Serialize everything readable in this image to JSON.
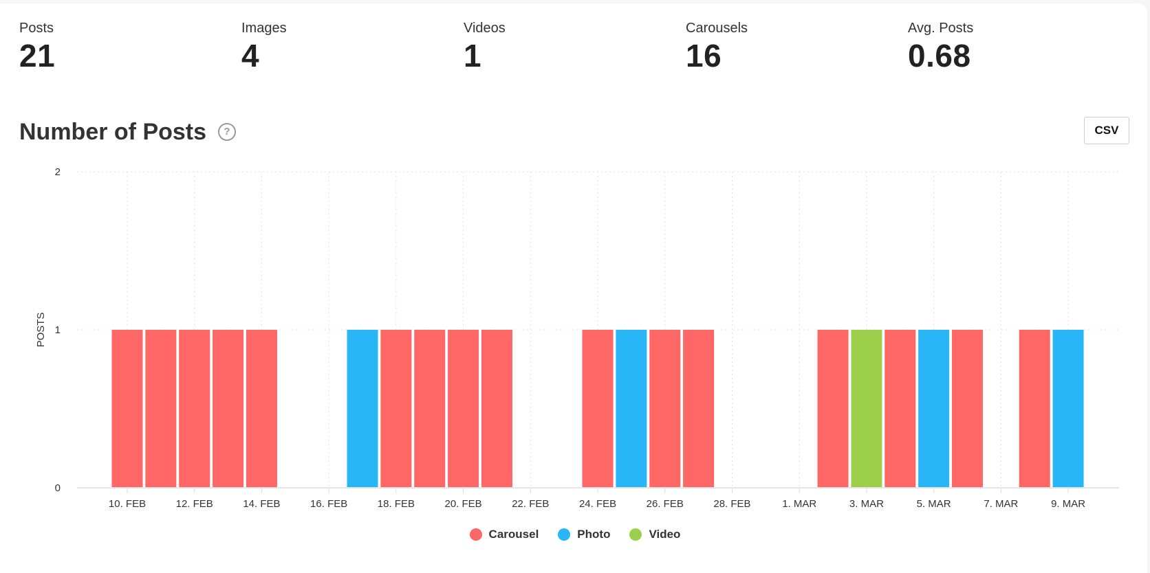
{
  "stats": [
    {
      "label": "Posts",
      "value": "21"
    },
    {
      "label": "Images",
      "value": "4"
    },
    {
      "label": "Videos",
      "value": "1"
    },
    {
      "label": "Carousels",
      "value": "16"
    },
    {
      "label": "Avg. Posts",
      "value": "0.68"
    }
  ],
  "section": {
    "title": "Number of Posts",
    "help_icon": "question-circle-icon",
    "help_glyph": "?",
    "csv_label": "CSV"
  },
  "chart_data": {
    "type": "bar",
    "title": "Number of Posts",
    "xlabel": "",
    "ylabel": "POSTS",
    "ylim": [
      0,
      2
    ],
    "yticks": [
      "0",
      "1",
      "2"
    ],
    "grid": true,
    "legend_position": "bottom-center",
    "x_tick_labels": [
      "10. FEB",
      "12. FEB",
      "14. FEB",
      "16. FEB",
      "18. FEB",
      "20. FEB",
      "22. FEB",
      "24. FEB",
      "26. FEB",
      "28. FEB",
      "1. MAR",
      "3. MAR",
      "5. MAR",
      "7. MAR",
      "9. MAR"
    ],
    "series": [
      {
        "name": "Carousel",
        "color": "#ff6766"
      },
      {
        "name": "Photo",
        "color": "#29b6f6"
      },
      {
        "name": "Video",
        "color": "#9ccf4c"
      }
    ],
    "dates": [
      "10. FEB",
      "11. FEB",
      "12. FEB",
      "13. FEB",
      "14. FEB",
      "15. FEB",
      "16. FEB",
      "17. FEB",
      "18. FEB",
      "19. FEB",
      "20. FEB",
      "21. FEB",
      "22. FEB",
      "23. FEB",
      "24. FEB",
      "25. FEB",
      "26. FEB",
      "27. FEB",
      "28. FEB",
      "29. FEB",
      "1. MAR",
      "2. MAR",
      "3. MAR",
      "4. MAR",
      "5. MAR",
      "6. MAR",
      "7. MAR",
      "8. MAR",
      "9. MAR"
    ],
    "bars": [
      {
        "date": "10. FEB",
        "type": "Carousel",
        "value": 1
      },
      {
        "date": "11. FEB",
        "type": "Carousel",
        "value": 1
      },
      {
        "date": "12. FEB",
        "type": "Carousel",
        "value": 1
      },
      {
        "date": "13. FEB",
        "type": "Carousel",
        "value": 1
      },
      {
        "date": "14. FEB",
        "type": "Carousel",
        "value": 1
      },
      {
        "date": "17. FEB",
        "type": "Photo",
        "value": 1
      },
      {
        "date": "18. FEB",
        "type": "Carousel",
        "value": 1
      },
      {
        "date": "19. FEB",
        "type": "Carousel",
        "value": 1
      },
      {
        "date": "20. FEB",
        "type": "Carousel",
        "value": 1
      },
      {
        "date": "21. FEB",
        "type": "Carousel",
        "value": 1
      },
      {
        "date": "24. FEB",
        "type": "Carousel",
        "value": 1
      },
      {
        "date": "25. FEB",
        "type": "Photo",
        "value": 1
      },
      {
        "date": "26. FEB",
        "type": "Carousel",
        "value": 1
      },
      {
        "date": "27. FEB",
        "type": "Carousel",
        "value": 1
      },
      {
        "date": "2. MAR",
        "type": "Carousel",
        "value": 1
      },
      {
        "date": "3. MAR",
        "type": "Video",
        "value": 1
      },
      {
        "date": "4. MAR",
        "type": "Carousel",
        "value": 1
      },
      {
        "date": "5. MAR",
        "type": "Photo",
        "value": 1
      },
      {
        "date": "6. MAR",
        "type": "Carousel",
        "value": 1
      },
      {
        "date": "8. MAR",
        "type": "Carousel",
        "value": 1
      },
      {
        "date": "9. MAR",
        "type": "Photo",
        "value": 1
      }
    ]
  }
}
